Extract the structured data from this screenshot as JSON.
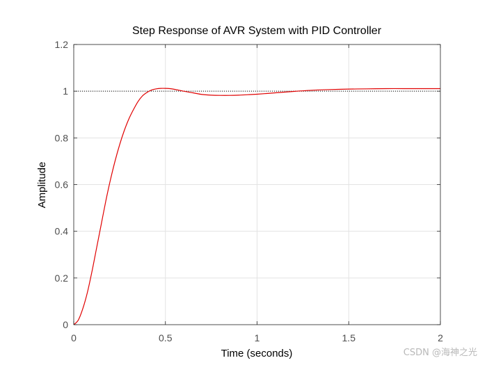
{
  "chart_data": {
    "type": "line",
    "title": "Step Response of AVR System with PID Controller",
    "xlabel": "Time (seconds)",
    "ylabel": "Amplitude",
    "xlim": [
      0,
      2
    ],
    "ylim": [
      0,
      1.2
    ],
    "xticks": [
      "0",
      "0.5",
      "1",
      "1.5",
      "2"
    ],
    "yticks": [
      "0",
      "0.2",
      "0.4",
      "0.6",
      "0.8",
      "1",
      "1.2"
    ],
    "grid": true,
    "reference_line": {
      "y": 1,
      "style": "dotted",
      "color": "#000000"
    },
    "series": [
      {
        "color": "#e00000",
        "x": [
          0,
          0.025,
          0.05,
          0.075,
          0.1,
          0.125,
          0.15,
          0.175,
          0.2,
          0.225,
          0.25,
          0.275,
          0.3,
          0.325,
          0.35,
          0.375,
          0.4,
          0.425,
          0.45,
          0.475,
          0.5,
          0.525,
          0.55,
          0.6,
          0.65,
          0.7,
          0.75,
          0.8,
          0.85,
          0.9,
          0.95,
          1.0,
          1.1,
          1.2,
          1.3,
          1.4,
          1.5,
          1.6,
          1.7,
          1.8,
          1.9,
          2.0
        ],
        "y": [
          0,
          0.02,
          0.07,
          0.14,
          0.23,
          0.33,
          0.43,
          0.53,
          0.62,
          0.7,
          0.77,
          0.83,
          0.88,
          0.92,
          0.955,
          0.98,
          0.995,
          1.005,
          1.01,
          1.012,
          1.012,
          1.011,
          1.008,
          1.0,
          0.993,
          0.986,
          0.983,
          0.982,
          0.982,
          0.983,
          0.985,
          0.987,
          0.993,
          0.999,
          1.004,
          1.007,
          1.009,
          1.01,
          1.011,
          1.011,
          1.011,
          1.011
        ]
      }
    ]
  },
  "watermark": "CSDN @海神之光"
}
